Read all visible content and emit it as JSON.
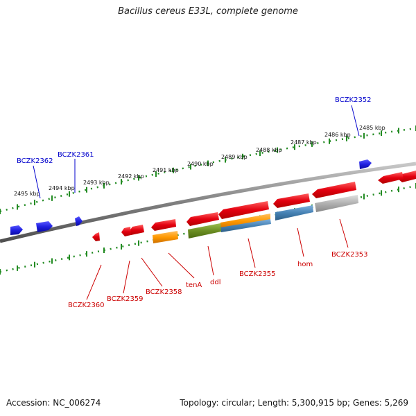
{
  "title": "Bacillus cereus E33L, complete genome",
  "footer": {
    "accession": "Accession: NC_006274",
    "topology": "Topology: circular; Length: 5,300,915 bp; Genes: 5,269"
  },
  "colors": {
    "backbone": "#808080",
    "scale": "#228b22",
    "forward_label": "#0000cc",
    "reverse_label": "#cc0000",
    "gene_red": "#e3000f",
    "gene_blue": "#1f1fe0",
    "gene_orange": "#ff9900",
    "gene_olive": "#6b8e23",
    "gene_steel": "#4682b4",
    "gene_gray": "#b0b0b0"
  },
  "scale_labels": [
    "2485 kbp",
    "2486 kbp",
    "2487 kbp",
    "2488 kbp",
    "2489 kbp",
    "2490 kbp",
    "2491 kbp",
    "2492 kbp",
    "2493 kbp",
    "2494 kbp",
    "2495 kbp"
  ],
  "gene_labels_forward": [
    "BCZK2352",
    "BCZK2361",
    "BCZK2362"
  ],
  "gene_labels_reverse": [
    "BCZK2353",
    "hom",
    "BCZK2355",
    "ddl",
    "tenA",
    "BCZK2358",
    "BCZK2359",
    "BCZK2360"
  ]
}
